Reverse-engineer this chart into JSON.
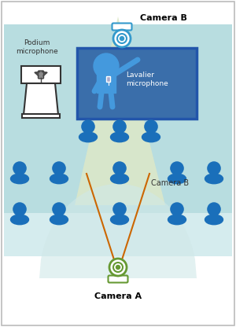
{
  "bg_outer": "#ffffff",
  "border_color": "#bbbbbb",
  "teal_main": "#b8dde0",
  "teal_light": "#d5ecee",
  "whiteboard_fill": "#3a6eaa",
  "whiteboard_border": "#2255aa",
  "person_color": "#1a6fba",
  "camera_b_color": "#3399cc",
  "camera_a_color": "#669933",
  "podium_color": "#333333",
  "line_color": "#cc6600",
  "cone_top_color": "#dde8c8",
  "cone_bot_color": "#d5e8d5",
  "cone_cam_b_color": "#dde8c0",
  "label_camera_b_top": "Camera B",
  "label_camera_b_mid": "Camera B",
  "label_camera_a": "Camera A",
  "label_podium_mic": "Podium\nmicrophone",
  "label_lavalier_mic": "Lavalier\nmicrophone",
  "figsize": [
    3.0,
    4.16
  ],
  "dpi": 100
}
